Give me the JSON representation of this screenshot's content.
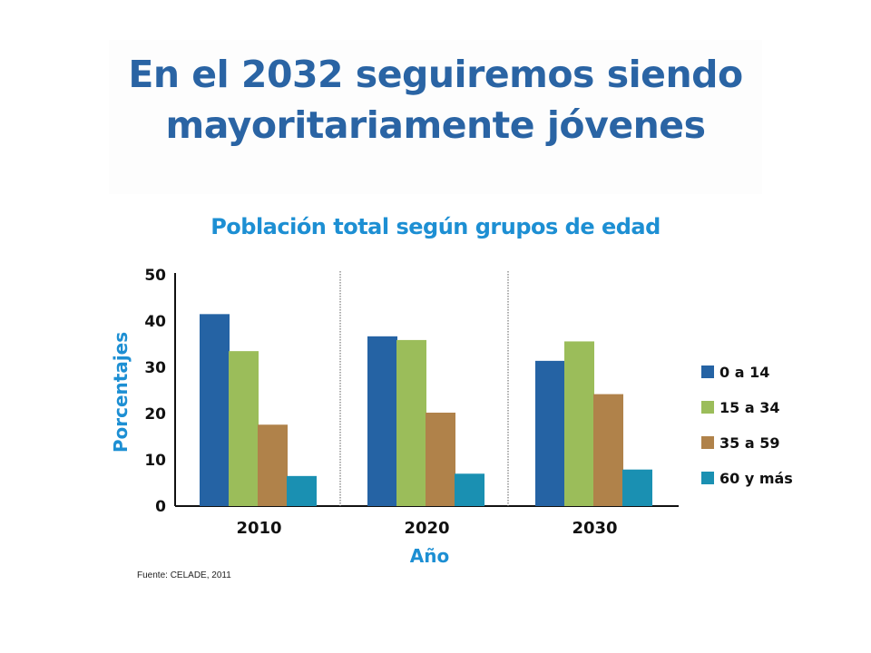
{
  "slide": {
    "title_line1": "En el 2032 seguiremos siendo",
    "title_line2": "mayoritariamente jóvenes",
    "source": "Fuente: CELADE, 2011"
  },
  "chart_data": {
    "type": "bar",
    "title": "Población total según grupos de edad",
    "xlabel": "Año",
    "ylabel": "Porcentajes",
    "categories": [
      "2010",
      "2020",
      "2030"
    ],
    "ylim": [
      0,
      50
    ],
    "yticks": [
      0,
      10,
      20,
      30,
      40,
      50
    ],
    "grid": false,
    "legend": "right",
    "series": [
      {
        "name": "0 a 14",
        "color": "#2563a4",
        "values": [
          41.5,
          36.7,
          31.4
        ]
      },
      {
        "name": "15 a 34",
        "color": "#9bbd5a",
        "values": [
          33.5,
          35.9,
          35.6
        ]
      },
      {
        "name": "35 a 59",
        "color": "#b0824a",
        "values": [
          17.6,
          20.2,
          24.2
        ]
      },
      {
        "name": "60 y más",
        "color": "#1a90b2",
        "values": [
          6.5,
          7.0,
          7.9
        ]
      }
    ]
  }
}
